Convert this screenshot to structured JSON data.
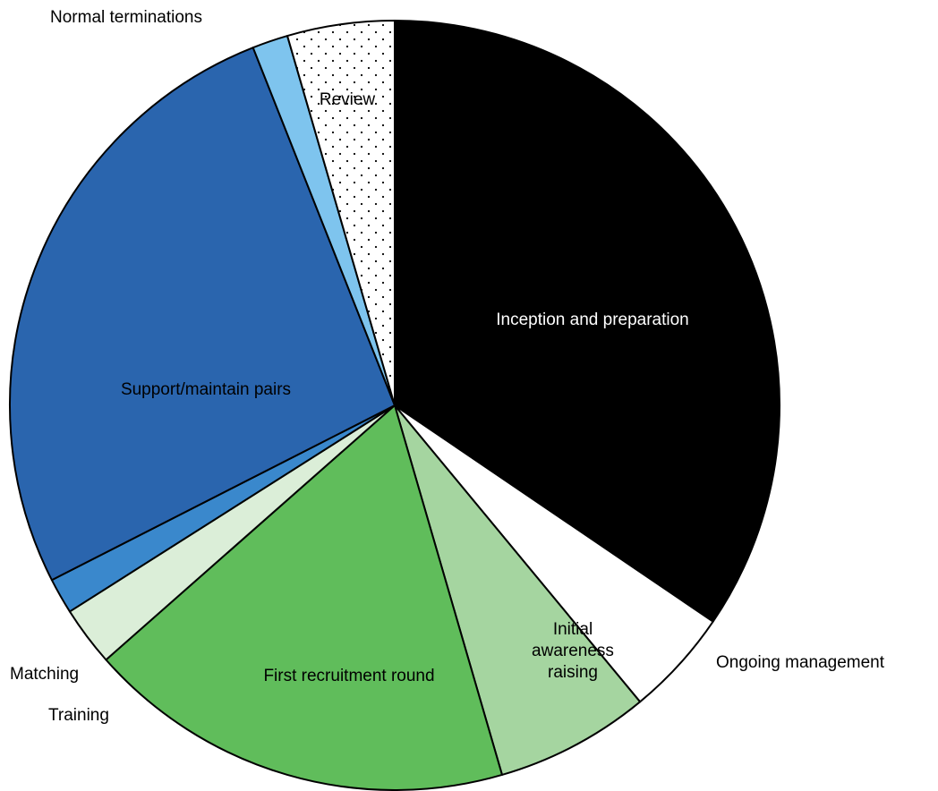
{
  "chart_data": {
    "type": "pie",
    "title": "",
    "start": "12 o'clock, clockwise",
    "slices": [
      {
        "label": "Inception and preparation",
        "value": 34.5,
        "color": "#000000",
        "pattern": "",
        "text_color": "#ffffff",
        "label_lines": [
          "Inception and preparation"
        ]
      },
      {
        "label": "Ongoing management",
        "value": 4.5,
        "color": "#ffffff",
        "pattern": "",
        "text_color": "#000000",
        "label_lines": [
          "Ongoing management"
        ]
      },
      {
        "label": "Initial awareness raising",
        "value": 6.5,
        "color": "#a5d5a0",
        "pattern": "",
        "text_color": "#000000",
        "label_lines": [
          "Initial",
          "awareness",
          "raising"
        ]
      },
      {
        "label": "First recruitment round",
        "value": 18.0,
        "color": "#60bd5b",
        "pattern": "",
        "text_color": "#000000",
        "label_lines": [
          "First recruitment round"
        ]
      },
      {
        "label": "Training",
        "value": 2.5,
        "color": "#dbeed8",
        "pattern": "",
        "text_color": "#000000",
        "label_lines": [
          "Training"
        ]
      },
      {
        "label": "Matching",
        "value": 1.5,
        "color": "#3a88cc",
        "pattern": "",
        "text_color": "#000000",
        "label_lines": [
          "Matching"
        ]
      },
      {
        "label": "Support/maintain pairs",
        "value": 26.5,
        "color": "#2a65ae",
        "pattern": "",
        "text_color": "#000000",
        "label_lines": [
          "Support/maintain pairs"
        ]
      },
      {
        "label": "Normal terminations",
        "value": 1.5,
        "color": "#7ec4ee",
        "pattern": "",
        "text_color": "#000000",
        "label_lines": [
          "Normal terminations"
        ]
      },
      {
        "label": "Review",
        "value": 4.5,
        "color": "#ffffff",
        "pattern": "dots",
        "text_color": "#000000",
        "label_lines": [
          "Review"
        ]
      }
    ]
  }
}
